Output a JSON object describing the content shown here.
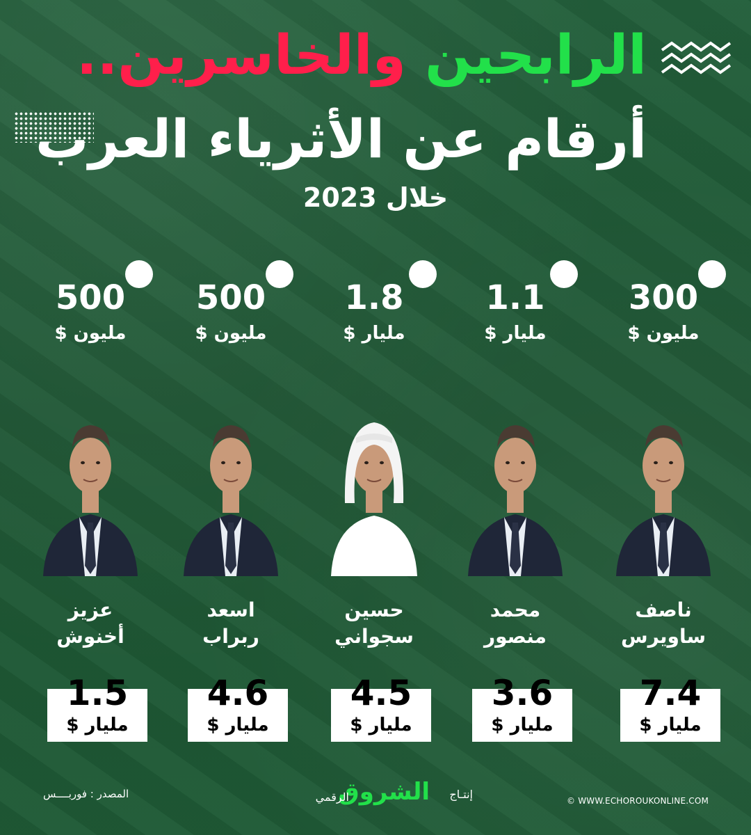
{
  "title": {
    "winners": "الرابحين",
    "losers": "والخاسرين..",
    "line2": "أرقام عن الأثرياء العرب",
    "subtitle": "خلال 2023"
  },
  "colors": {
    "gain": "#22d347",
    "loss": "#ed1c45",
    "background": "#1f5a36"
  },
  "people": [
    {
      "first_name": "ناصف",
      "last_name": "ساويرس",
      "change_sign": "+",
      "change_value": "300",
      "change_unit": "مليون $",
      "net_worth": "7.4",
      "net_worth_unit": "مليار $",
      "trend": "gain",
      "headwear": false
    },
    {
      "first_name": "محمد",
      "last_name": "منصور",
      "change_sign": "+",
      "change_value": "1.1",
      "change_unit": "مليار $",
      "net_worth": "3.6",
      "net_worth_unit": "مليار $",
      "trend": "gain",
      "headwear": false
    },
    {
      "first_name": "حسين",
      "last_name": "سجواني",
      "change_sign": "+",
      "change_value": "1.8",
      "change_unit": "مليار $",
      "net_worth": "4.5",
      "net_worth_unit": "مليار $",
      "trend": "gain",
      "headwear": true
    },
    {
      "first_name": "اسعد",
      "last_name": "ربراب",
      "change_sign": "-",
      "change_value": "500",
      "change_unit": "مليون $",
      "net_worth": "4.6",
      "net_worth_unit": "مليار $",
      "trend": "loss",
      "headwear": false
    },
    {
      "first_name": "عزيز",
      "last_name": "أخنوش",
      "change_sign": "-",
      "change_value": "500",
      "change_unit": "مليون $",
      "net_worth": "1.5",
      "net_worth_unit": "مليار $",
      "trend": "loss",
      "headwear": false
    }
  ],
  "footer": {
    "source": "المصدر : فوربــــس",
    "production": "إنتـاج",
    "brand": "الشروق",
    "digital": "الرقمي",
    "website": "© WWW.ECHOROUKONLINE.COM"
  }
}
